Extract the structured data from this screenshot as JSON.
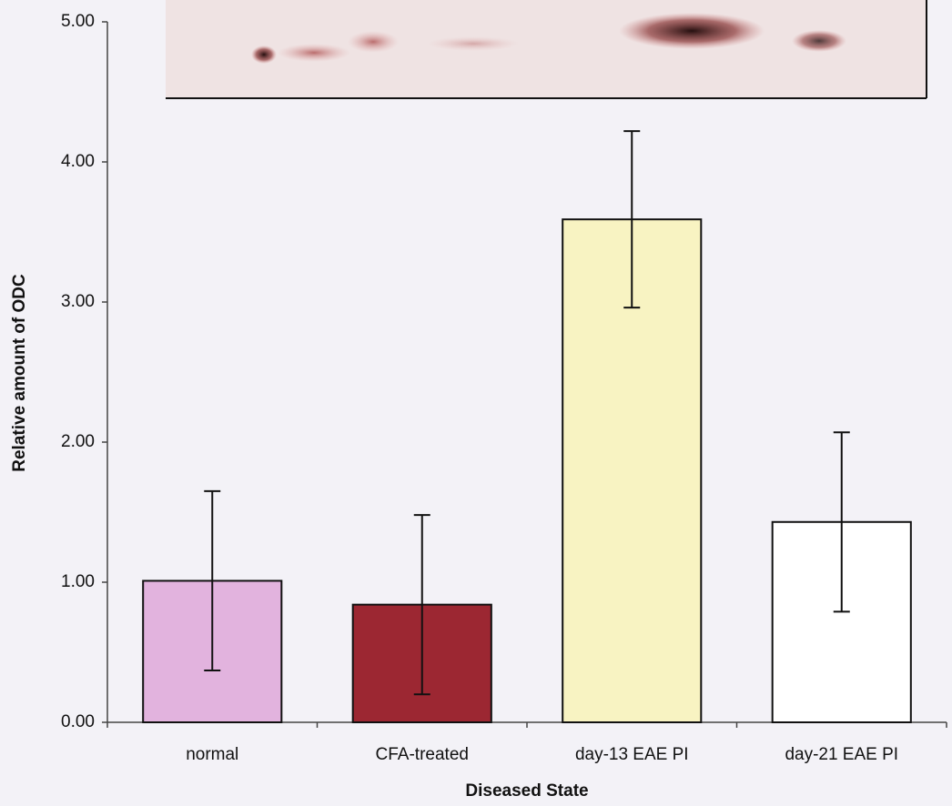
{
  "chart_data": {
    "type": "bar",
    "y_label": "Relative amount of ODC",
    "x_label": "Diseased State",
    "categories": [
      "normal",
      "CFA-treated",
      "day-13 EAE PI",
      "day-21 EAE PI"
    ],
    "values": [
      1.01,
      0.84,
      3.59,
      1.43
    ],
    "errors": [
      0.64,
      0.64,
      0.63,
      0.64
    ],
    "colors": [
      "#e2b3de",
      "#9c2732",
      "#f8f3c2",
      "#ffffff"
    ],
    "ylim": [
      0,
      5
    ],
    "yticks": [
      {
        "value": 0,
        "label": "0.00"
      },
      {
        "value": 1,
        "label": "1.00"
      },
      {
        "value": 2,
        "label": "2.00"
      },
      {
        "value": 3,
        "label": "3.00"
      },
      {
        "value": 4,
        "label": "4.00"
      },
      {
        "value": 5,
        "label": "5.00"
      }
    ]
  }
}
